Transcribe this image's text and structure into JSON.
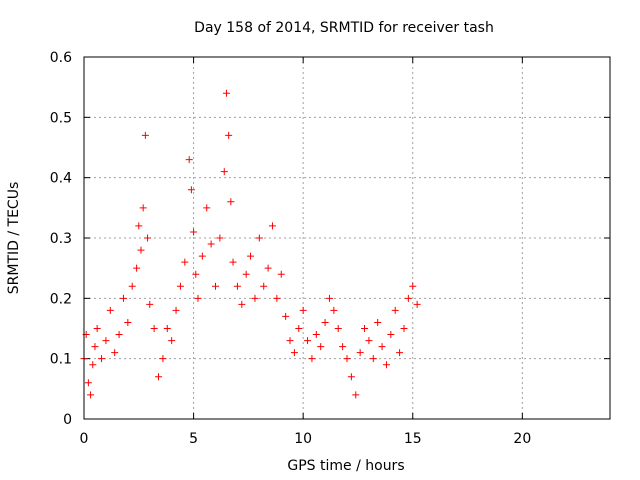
{
  "chart_data": {
    "type": "scatter",
    "title": "Day 158 of 2014, SRMTID for receiver tash",
    "xlabel": "GPS time / hours",
    "ylabel": "SRMTID / TECUs",
    "xlim": [
      0,
      24
    ],
    "ylim": [
      0,
      0.6
    ],
    "x_ticks": [
      0,
      5,
      10,
      15,
      20
    ],
    "y_ticks": [
      0,
      0.1,
      0.2,
      0.3,
      0.4,
      0.5,
      0.6
    ],
    "x_tick_labels": [
      "0",
      "5",
      "10",
      "15",
      "20"
    ],
    "y_tick_labels": [
      "0",
      "0.1",
      "0.2",
      "0.3",
      "0.4",
      "0.5",
      "0.6"
    ],
    "grid": true,
    "marker": "+",
    "color": "#ff0000",
    "series": [
      {
        "name": "SRMTID",
        "x": [
          0.0,
          0.1,
          0.2,
          0.3,
          0.4,
          0.5,
          0.6,
          0.8,
          1.0,
          1.2,
          1.4,
          1.6,
          1.8,
          2.0,
          2.2,
          2.4,
          2.5,
          2.6,
          2.7,
          2.8,
          2.9,
          3.0,
          3.2,
          3.4,
          3.6,
          3.8,
          4.0,
          4.2,
          4.4,
          4.6,
          4.8,
          4.9,
          5.0,
          5.1,
          5.2,
          5.4,
          5.6,
          5.8,
          6.0,
          6.2,
          6.4,
          6.5,
          6.6,
          6.7,
          6.8,
          7.0,
          7.2,
          7.4,
          7.6,
          7.8,
          8.0,
          8.2,
          8.4,
          8.6,
          8.8,
          9.0,
          9.2,
          9.4,
          9.6,
          9.8,
          10.0,
          10.2,
          10.4,
          10.6,
          10.8,
          11.0,
          11.2,
          11.4,
          11.6,
          11.8,
          12.0,
          12.2,
          12.4,
          12.6,
          12.8,
          13.0,
          13.2,
          13.4,
          13.6,
          13.8,
          14.0,
          14.2,
          14.4,
          14.6,
          14.8,
          15.0,
          15.2
        ],
        "y": [
          0.1,
          0.14,
          0.06,
          0.04,
          0.09,
          0.12,
          0.15,
          0.1,
          0.13,
          0.18,
          0.11,
          0.14,
          0.2,
          0.16,
          0.22,
          0.25,
          0.32,
          0.28,
          0.35,
          0.47,
          0.3,
          0.19,
          0.15,
          0.07,
          0.1,
          0.15,
          0.13,
          0.18,
          0.22,
          0.26,
          0.43,
          0.38,
          0.31,
          0.24,
          0.2,
          0.27,
          0.35,
          0.29,
          0.22,
          0.3,
          0.41,
          0.54,
          0.47,
          0.36,
          0.26,
          0.22,
          0.19,
          0.24,
          0.27,
          0.2,
          0.3,
          0.22,
          0.25,
          0.32,
          0.2,
          0.24,
          0.17,
          0.13,
          0.11,
          0.15,
          0.18,
          0.13,
          0.1,
          0.14,
          0.12,
          0.16,
          0.2,
          0.18,
          0.15,
          0.12,
          0.1,
          0.07,
          0.04,
          0.11,
          0.15,
          0.13,
          0.1,
          0.16,
          0.12,
          0.09,
          0.14,
          0.18,
          0.11,
          0.15,
          0.2,
          0.22,
          0.19
        ]
      }
    ]
  }
}
